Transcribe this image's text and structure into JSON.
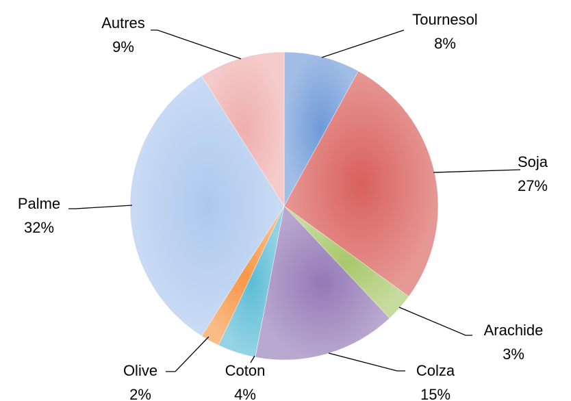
{
  "chart_data": {
    "type": "pie",
    "categories": [
      "Tournesol",
      "Soja",
      "Arachide",
      "Colza",
      "Coton",
      "Olive",
      "Palme",
      "Autres"
    ],
    "values": [
      8,
      27,
      3,
      15,
      4,
      2,
      32,
      9
    ],
    "value_labels": [
      "8%",
      "27%",
      "3%",
      "15%",
      "4%",
      "2%",
      "32%",
      "9%"
    ],
    "colors": [
      "#6f9ad8",
      "#d9605c",
      "#a8c86a",
      "#9479b6",
      "#5cbcd6",
      "#f79646",
      "#adc8ee",
      "#efaeae"
    ]
  }
}
